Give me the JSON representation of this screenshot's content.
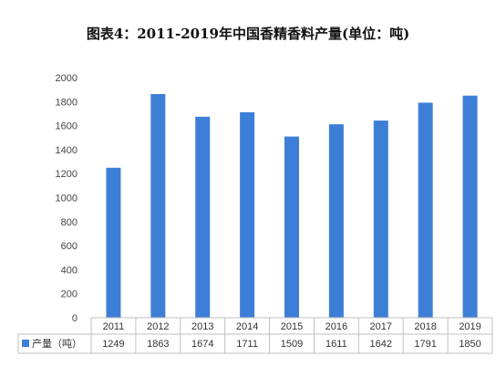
{
  "chart_data": {
    "type": "bar",
    "title": "图表4：2011-2019年中国香精香料产量(单位：吨)",
    "categories": [
      "2011",
      "2012",
      "2013",
      "2014",
      "2015",
      "2016",
      "2017",
      "2018",
      "2019"
    ],
    "series": [
      {
        "name": "产量（吨）",
        "values": [
          1249,
          1863,
          1674,
          1711,
          1509,
          1611,
          1642,
          1791,
          1850
        ],
        "color": "#3d7fd6"
      }
    ],
    "ylim": [
      0,
      2000
    ],
    "yticks": [
      0,
      200,
      400,
      600,
      800,
      1000,
      1200,
      1400,
      1600,
      1800,
      2000
    ],
    "grid": false,
    "legend": "data-table"
  }
}
